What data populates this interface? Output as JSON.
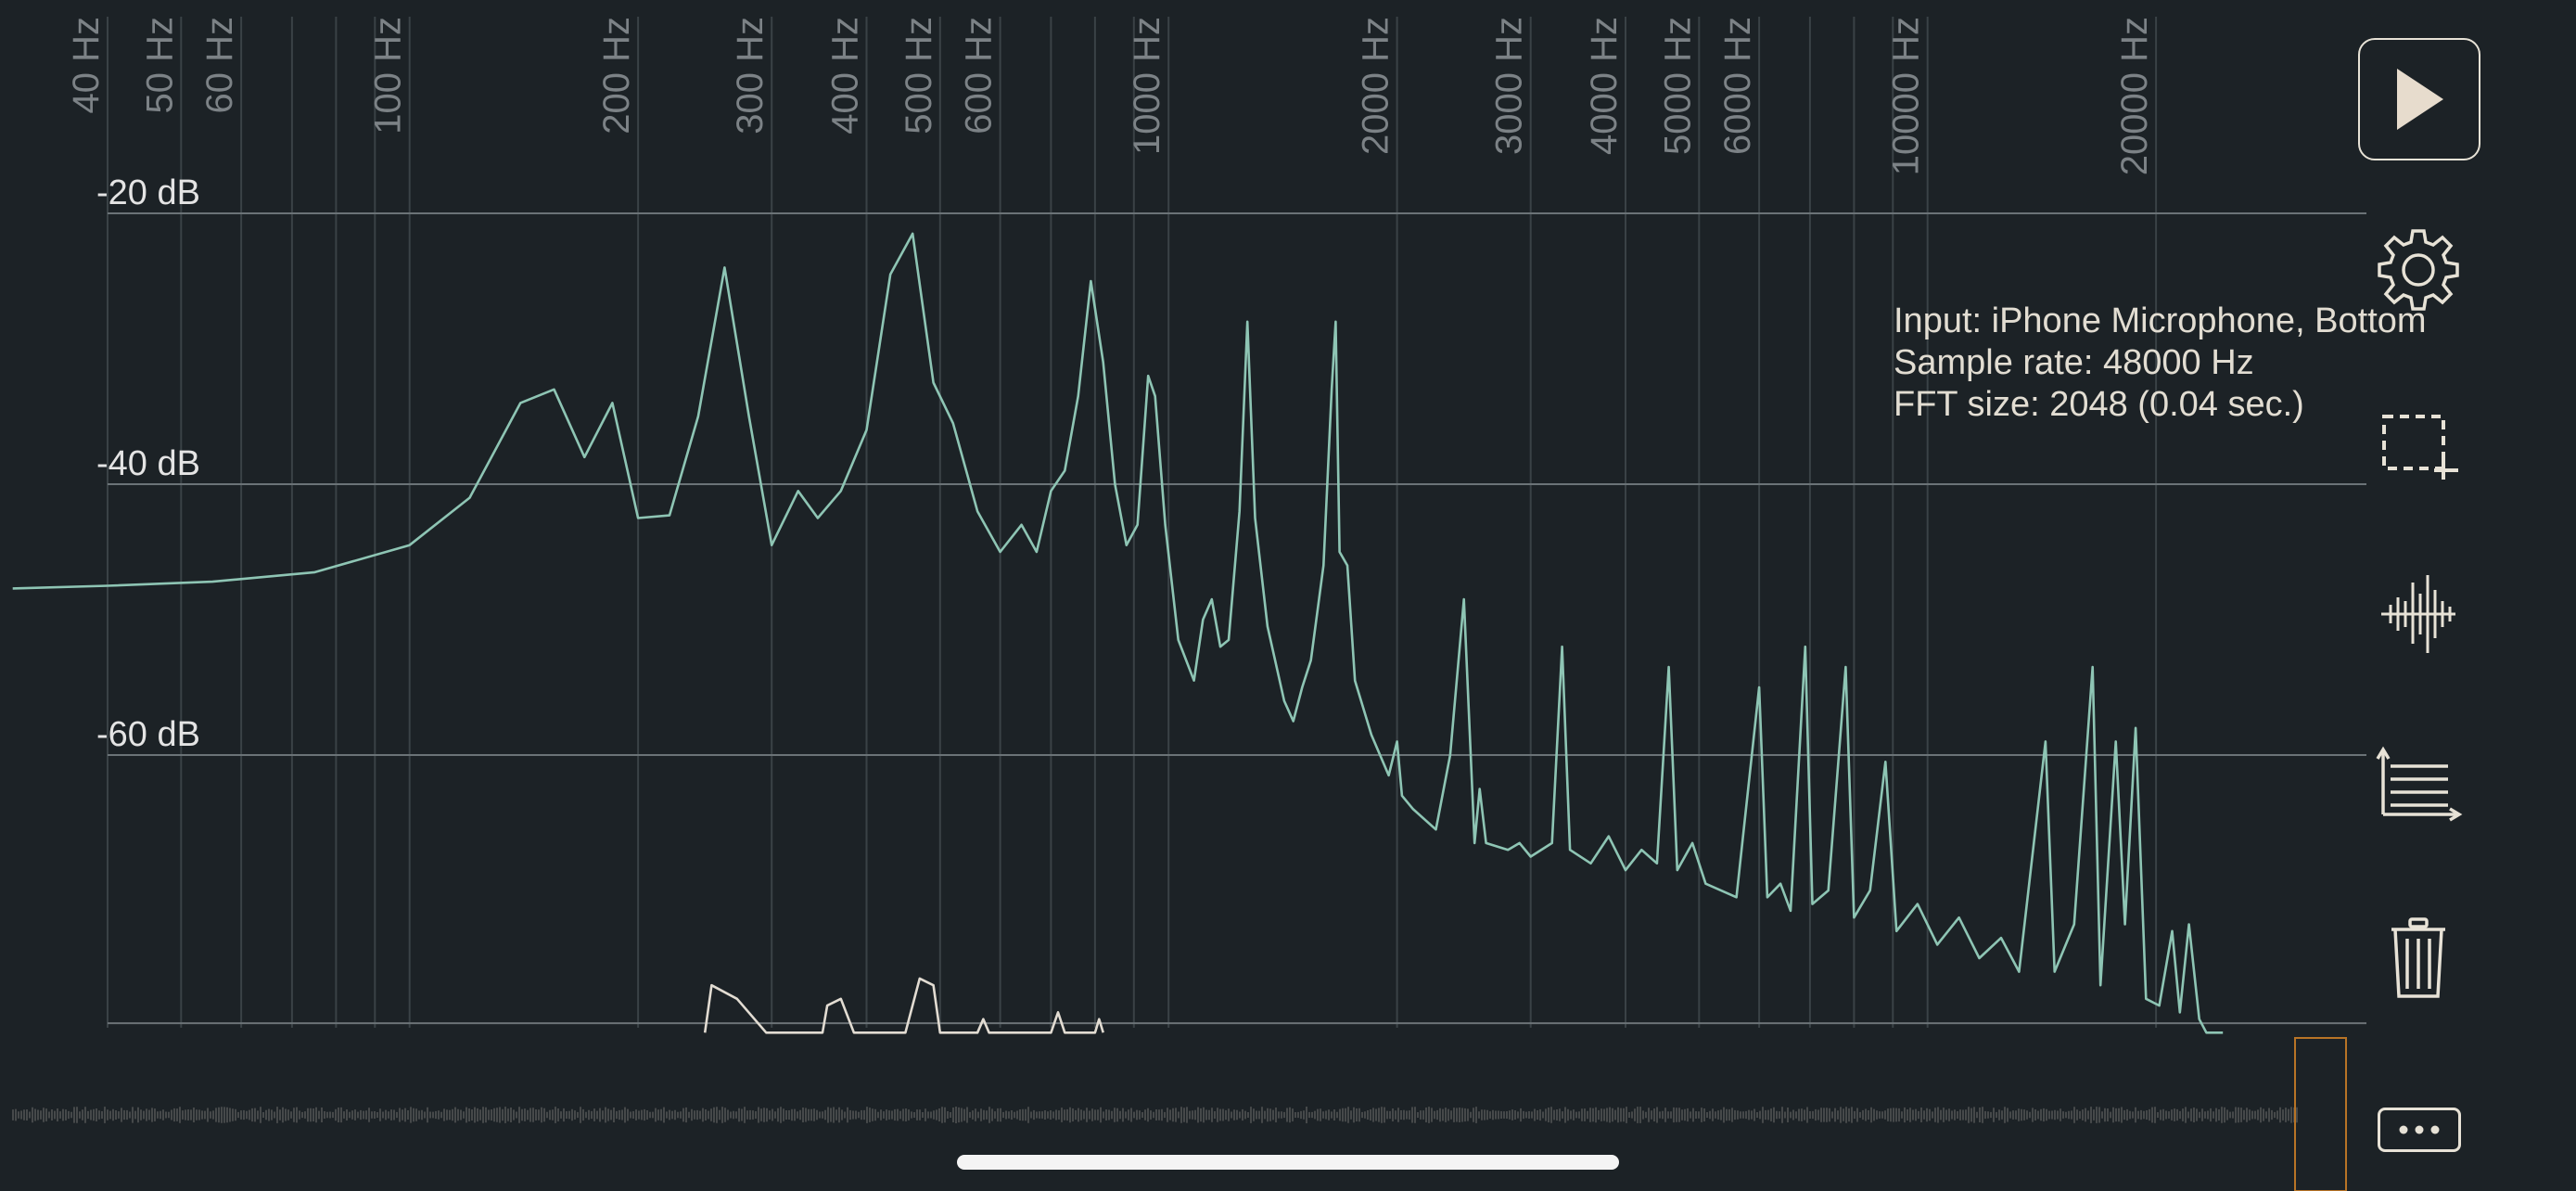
{
  "chart_data": {
    "type": "line",
    "xscale": "log",
    "xunit": "Hz",
    "yunit": "dB",
    "xlim": [
      30,
      26000
    ],
    "ylim": [
      -81,
      -19
    ],
    "x_ticks": [
      40,
      50,
      60,
      70,
      80,
      90,
      100,
      200,
      300,
      400,
      500,
      600,
      700,
      800,
      900,
      1000,
      2000,
      3000,
      4000,
      5000,
      6000,
      7000,
      8000,
      9000,
      10000,
      20000
    ],
    "x_tick_labels": [
      {
        "value": 40,
        "label": "40 Hz"
      },
      {
        "value": 50,
        "label": "50 Hz"
      },
      {
        "value": 60,
        "label": "60 Hz"
      },
      {
        "value": 100,
        "label": "100 Hz"
      },
      {
        "value": 200,
        "label": "200 Hz"
      },
      {
        "value": 300,
        "label": "300 Hz"
      },
      {
        "value": 400,
        "label": "400 Hz"
      },
      {
        "value": 500,
        "label": "500 Hz"
      },
      {
        "value": 600,
        "label": "600 Hz"
      },
      {
        "value": 1000,
        "label": "1000 Hz"
      },
      {
        "value": 2000,
        "label": "2000 Hz"
      },
      {
        "value": 3000,
        "label": "3000 Hz"
      },
      {
        "value": 4000,
        "label": "4000 Hz"
      },
      {
        "value": 5000,
        "label": "5000 Hz"
      },
      {
        "value": 6000,
        "label": "6000 Hz"
      },
      {
        "value": 10000,
        "label": "10000 Hz"
      },
      {
        "value": 20000,
        "label": "20000 Hz"
      }
    ],
    "y_ticks": [
      {
        "value": -20,
        "label": "-20 dB"
      },
      {
        "value": -40,
        "label": "-40 dB"
      },
      {
        "value": -60,
        "label": "-60 dB"
      }
    ],
    "series": [
      {
        "color": "#8ec5b4",
        "points": [
          [
            30,
            -47.7
          ],
          [
            40,
            -47.5
          ],
          [
            55,
            -47.2
          ],
          [
            75,
            -46.5
          ],
          [
            100,
            -44.5
          ],
          [
            120,
            -41
          ],
          [
            140,
            -34
          ],
          [
            155,
            -33
          ],
          [
            170,
            -38
          ],
          [
            185,
            -34
          ],
          [
            200,
            -42.5
          ],
          [
            220,
            -42.3
          ],
          [
            240,
            -35
          ],
          [
            260,
            -24
          ],
          [
            280,
            -35
          ],
          [
            300,
            -44.5
          ],
          [
            325,
            -40.5
          ],
          [
            345,
            -42.5
          ],
          [
            370,
            -40.5
          ],
          [
            400,
            -36
          ],
          [
            430,
            -24.5
          ],
          [
            460,
            -21.5
          ],
          [
            490,
            -32.5
          ],
          [
            520,
            -35.5
          ],
          [
            560,
            -42
          ],
          [
            600,
            -45
          ],
          [
            640,
            -43
          ],
          [
            670,
            -45
          ],
          [
            700,
            -40.5
          ],
          [
            730,
            -39
          ],
          [
            760,
            -33.5
          ],
          [
            790,
            -25
          ],
          [
            820,
            -31
          ],
          [
            850,
            -40
          ],
          [
            880,
            -44.5
          ],
          [
            910,
            -43
          ],
          [
            940,
            -32
          ],
          [
            960,
            -33.5
          ],
          [
            990,
            -43
          ],
          [
            1030,
            -51.5
          ],
          [
            1080,
            -54.5
          ],
          [
            1110,
            -50
          ],
          [
            1140,
            -48.5
          ],
          [
            1170,
            -52
          ],
          [
            1200,
            -51.5
          ],
          [
            1240,
            -42
          ],
          [
            1270,
            -28
          ],
          [
            1300,
            -42.5
          ],
          [
            1350,
            -50.5
          ],
          [
            1420,
            -56
          ],
          [
            1460,
            -57.5
          ],
          [
            1500,
            -55
          ],
          [
            1540,
            -53
          ],
          [
            1600,
            -46
          ],
          [
            1640,
            -33
          ],
          [
            1660,
            -28
          ],
          [
            1680,
            -45
          ],
          [
            1720,
            -46
          ],
          [
            1760,
            -54.5
          ],
          [
            1850,
            -58.5
          ],
          [
            1950,
            -61.5
          ],
          [
            2000,
            -59
          ],
          [
            2030,
            -63
          ],
          [
            2100,
            -64
          ],
          [
            2250,
            -65.5
          ],
          [
            2350,
            -60
          ],
          [
            2450,
            -48.5
          ],
          [
            2530,
            -66.5
          ],
          [
            2570,
            -62.5
          ],
          [
            2620,
            -66.5
          ],
          [
            2800,
            -67
          ],
          [
            2900,
            -66.5
          ],
          [
            3000,
            -67.5
          ],
          [
            3200,
            -66.5
          ],
          [
            3300,
            -52
          ],
          [
            3380,
            -67
          ],
          [
            3600,
            -68
          ],
          [
            3800,
            -66
          ],
          [
            4000,
            -68.5
          ],
          [
            4200,
            -67
          ],
          [
            4400,
            -68
          ],
          [
            4560,
            -53.5
          ],
          [
            4680,
            -68.5
          ],
          [
            4900,
            -66.5
          ],
          [
            5100,
            -69.5
          ],
          [
            5600,
            -70.5
          ],
          [
            6000,
            -55
          ],
          [
            6150,
            -70.5
          ],
          [
            6400,
            -69.5
          ],
          [
            6600,
            -71.5
          ],
          [
            6900,
            -52
          ],
          [
            7050,
            -71
          ],
          [
            7400,
            -70
          ],
          [
            7800,
            -53.5
          ],
          [
            8000,
            -72
          ],
          [
            8400,
            -70
          ],
          [
            8800,
            -60.5
          ],
          [
            9100,
            -73
          ],
          [
            9700,
            -71
          ],
          [
            10300,
            -74
          ],
          [
            11000,
            -72
          ],
          [
            11700,
            -75
          ],
          [
            12500,
            -73.5
          ],
          [
            13200,
            -76
          ],
          [
            14300,
            -59
          ],
          [
            14700,
            -76
          ],
          [
            15600,
            -72.5
          ],
          [
            16500,
            -53.5
          ],
          [
            16900,
            -77
          ],
          [
            17700,
            -59
          ],
          [
            18200,
            -72.5
          ],
          [
            18800,
            -58
          ],
          [
            19400,
            -78
          ],
          [
            20200,
            -78.5
          ],
          [
            21000,
            -73
          ],
          [
            21500,
            -79
          ],
          [
            22100,
            -72.5
          ],
          [
            22800,
            -79.5
          ],
          [
            23300,
            -80.5
          ],
          [
            24500,
            -80.5
          ]
        ]
      },
      {
        "color": "#e2dcd2",
        "points": [
          [
            245,
            -80.5
          ],
          [
            250,
            -77
          ],
          [
            270,
            -78
          ],
          [
            295,
            -80.5
          ],
          [
            350,
            -80.5
          ],
          [
            355,
            -78.5
          ],
          [
            370,
            -78
          ],
          [
            385,
            -80.5
          ],
          [
            450,
            -80.5
          ],
          [
            470,
            -76.5
          ],
          [
            490,
            -77
          ],
          [
            500,
            -80.5
          ],
          [
            560,
            -80.5
          ],
          [
            570,
            -79.5
          ],
          [
            580,
            -80.5
          ],
          [
            700,
            -80.5
          ],
          [
            715,
            -79
          ],
          [
            730,
            -80.5
          ],
          [
            800,
            -80.5
          ],
          [
            810,
            -79.5
          ],
          [
            820,
            -80.5
          ]
        ]
      }
    ],
    "waveform_color": "#46494a",
    "selection_color": "#b87426"
  },
  "info": {
    "line1": "Input: iPhone Microphone, Bottom",
    "line2": "Sample rate: 48000 Hz",
    "line3": "FFT size: 2048 (0.04 sec.)"
  },
  "toolbar": {
    "play": "play-icon",
    "settings": "gear-icon",
    "select": "selection-icon",
    "waveform": "waveform-icon",
    "axes": "axes-icon",
    "trash": "trash-icon",
    "more": "ellipsis-icon"
  }
}
